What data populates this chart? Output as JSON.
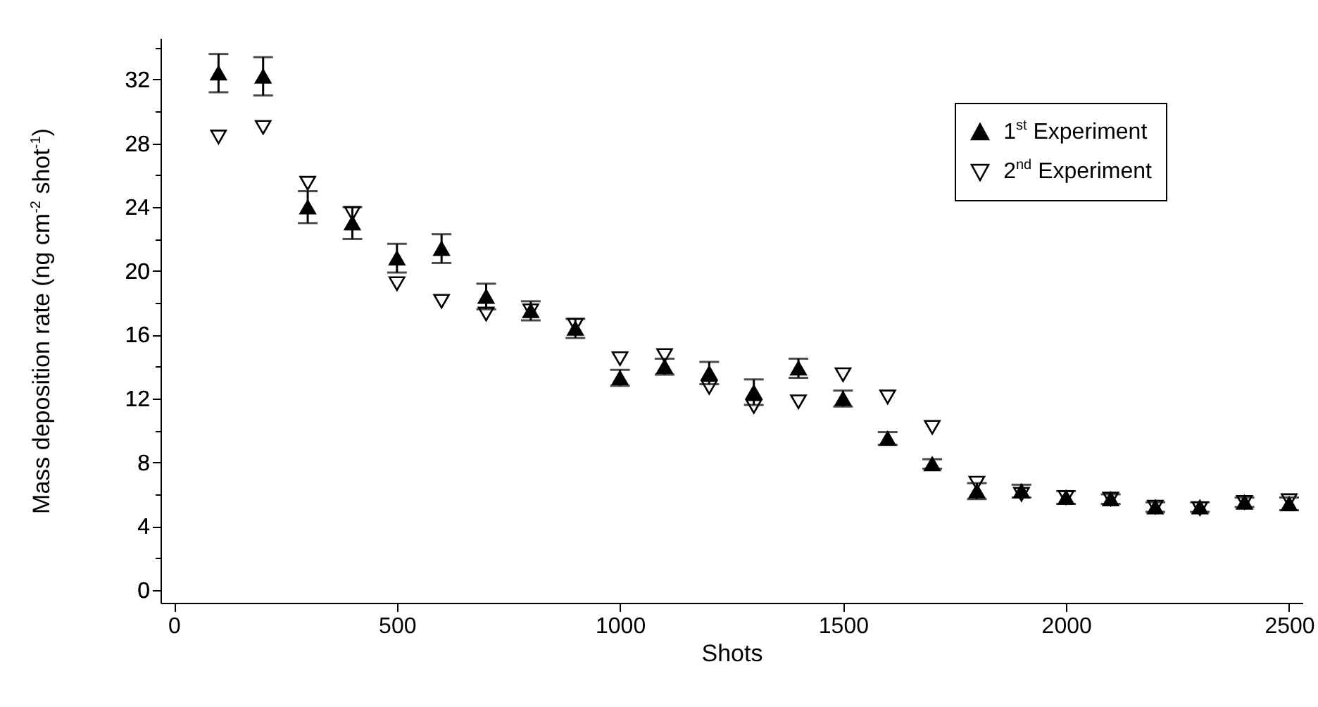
{
  "chart_data": {
    "type": "scatter",
    "xlabel": "Shots",
    "ylabel": "Mass deposition rate (ng cm$^{-2}$ shot$^{-1}$)",
    "x": [
      100,
      200,
      300,
      400,
      500,
      600,
      700,
      800,
      900,
      1000,
      1100,
      1200,
      1300,
      1400,
      1500,
      1600,
      1700,
      1800,
      1900,
      2000,
      2100,
      2200,
      2300,
      2400,
      2500
    ],
    "series": [
      {
        "name": "1$^{st}$ Experiment",
        "color": "#000000",
        "marker": "triangle",
        "values": [
          32.4,
          32.2,
          24.0,
          23.0,
          20.8,
          21.4,
          18.4,
          17.5,
          16.4,
          13.3,
          14.0,
          13.6,
          12.4,
          13.9,
          12.0,
          9.5,
          7.9,
          6.2,
          6.2,
          5.8,
          5.7,
          5.2,
          5.2,
          5.5,
          5.4
        ],
        "errors": [
          1.2,
          1.2,
          1.0,
          1.0,
          0.9,
          0.9,
          0.8,
          0.6,
          0.6,
          0.5,
          0.5,
          0.7,
          0.8,
          0.6,
          0.5,
          0.4,
          0.3,
          0.5,
          0.4,
          0.4,
          0.3,
          0.3,
          0.3,
          0.3,
          0.4
        ]
      },
      {
        "name": "2$^{nd}$ Experiment",
        "color": "#000000",
        "marker": "triangle-down",
        "values": [
          28.4,
          29.0,
          25.5,
          23.6,
          19.2,
          18.1,
          17.3,
          17.5,
          16.6,
          14.5,
          14.7,
          12.7,
          11.5,
          11.8,
          13.5,
          12.1,
          10.2,
          6.7,
          6.0,
          5.8,
          5.7,
          5.2,
          5.1,
          5.5,
          5.6
        ]
      }
    ],
    "xlim": [
      -30,
      2530
    ],
    "ylim": [
      -0.8,
      34.6
    ],
    "xticks": [
      0,
      500,
      1000,
      1500,
      2000,
      2500
    ],
    "yticks": [
      0,
      {
        "value": 2,
        "label": null
      },
      4,
      {
        "value": 6,
        "label": null
      },
      8,
      {
        "value": 10,
        "label": null
      },
      12,
      {
        "value": 14,
        "label": null
      },
      16,
      {
        "value": 18,
        "label": null
      },
      20,
      {
        "value": 22,
        "label": null
      },
      24,
      {
        "value": 26,
        "label": null
      },
      28,
      {
        "value": 30,
        "label": null
      },
      32,
      {
        "value": 34,
        "label": null
      }
    ],
    "grid": false,
    "legend": "top right"
  }
}
